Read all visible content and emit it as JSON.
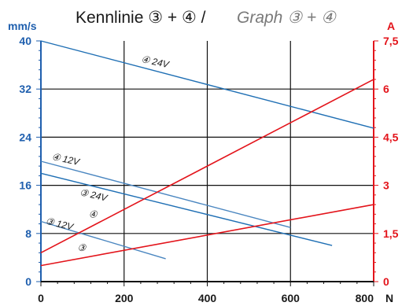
{
  "chart_data": {
    "type": "line",
    "title": "Kennlinie ③ + ④ /",
    "subtitle": "Graph ③ + ④",
    "xlabel": "N",
    "ylabel_left": "mm/s",
    "ylabel_right": "A",
    "xlim": [
      0,
      800
    ],
    "ylim_left": [
      0,
      40
    ],
    "ylim_right": [
      0,
      7.5
    ],
    "x_ticks": [
      "0",
      "200",
      "400",
      "600",
      "800"
    ],
    "y_left_ticks": [
      "0",
      "8",
      "16",
      "24",
      "32",
      "40"
    ],
    "y_right_ticks": [
      "0",
      "1,5",
      "3",
      "4,5",
      "6",
      "7,5"
    ],
    "grid": true,
    "colors": {
      "speed_line": "#1f6fb4",
      "speed_line_light": "#4a86c0",
      "current_line": "#e3141b",
      "left_axis": "#1f5fae",
      "right_axis": "#e3141b"
    },
    "speed_series": [
      {
        "label": "④ 24V",
        "axis": "left",
        "x": [
          0,
          800
        ],
        "y": [
          40,
          25.5
        ]
      },
      {
        "label": "④ 12V",
        "axis": "left",
        "x": [
          0,
          600
        ],
        "y": [
          20,
          9
        ]
      },
      {
        "label": "③ 24V",
        "axis": "left",
        "x": [
          0,
          700
        ],
        "y": [
          18,
          6
        ]
      },
      {
        "label": "③ 12V",
        "axis": "left",
        "x": [
          0,
          300
        ],
        "y": [
          10,
          3.8
        ]
      }
    ],
    "current_series": [
      {
        "label": "④",
        "axis": "right",
        "x": [
          0,
          800
        ],
        "y": [
          0.9,
          6.3
        ]
      },
      {
        "label": "③",
        "axis": "right",
        "x": [
          0,
          800
        ],
        "y": [
          0.5,
          2.4
        ]
      }
    ]
  }
}
